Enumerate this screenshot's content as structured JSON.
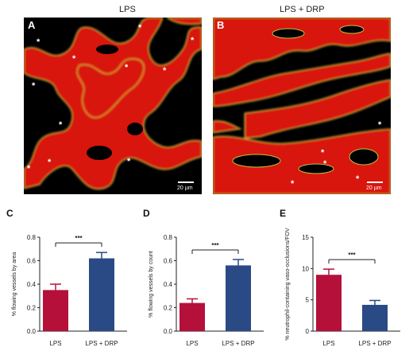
{
  "panel_a": {
    "letter": "A",
    "title": "LPS",
    "scale_label": "20 µm",
    "asterisk": "*"
  },
  "panel_b": {
    "letter": "B",
    "title": "LPS + DRP",
    "scale_label": "20 µm",
    "asterisk": "*"
  },
  "chart_data": [
    {
      "letter": "C",
      "type": "bar",
      "categories": [
        "LPS",
        "LPS + DRP"
      ],
      "values": [
        0.35,
        0.62
      ],
      "errors": [
        0.05,
        0.05
      ],
      "colors": [
        "#b5103a",
        "#2a4a86"
      ],
      "ylabel": "% flowing vessels by area",
      "ylim": [
        0,
        0.8
      ],
      "yticks": [
        "0.0",
        "0.2",
        "0.4",
        "0.6",
        "0.8"
      ],
      "significance": "***"
    },
    {
      "letter": "D",
      "type": "bar",
      "categories": [
        "LPS",
        "LPS + DRP"
      ],
      "values": [
        0.24,
        0.56
      ],
      "errors": [
        0.035,
        0.05
      ],
      "colors": [
        "#b5103a",
        "#2a4a86"
      ],
      "ylabel": "% flowing vessels by count",
      "ylim": [
        0,
        0.8
      ],
      "yticks": [
        "0.0",
        "0.2",
        "0.4",
        "0.6",
        "0.8"
      ],
      "significance": "***"
    },
    {
      "letter": "E",
      "type": "bar",
      "categories": [
        "LPS",
        "LPS + DRP"
      ],
      "values": [
        9.0,
        4.2
      ],
      "errors": [
        0.9,
        0.7
      ],
      "colors": [
        "#b5103a",
        "#2a4a86"
      ],
      "ylabel": "% neutrophil-containing vaso-occlusions/FOV",
      "ylim": [
        0,
        15
      ],
      "yticks": [
        "0",
        "5",
        "10",
        "15"
      ],
      "significance": "***"
    }
  ]
}
